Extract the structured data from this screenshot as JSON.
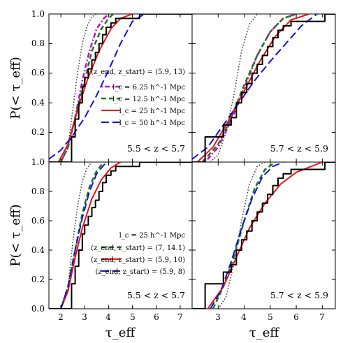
{
  "chart_data": [
    {
      "type": "line",
      "panel": "top-left",
      "panel_label": "5.5 < z < 5.7",
      "legend_position": "center-right",
      "legend_title": "(z_end, z_start) = (5.9, 13)",
      "ylim": [
        0,
        1.0
      ],
      "xlim": [
        1.5,
        7.5
      ],
      "series": [
        {
          "name": "",
          "style": "black-dotted",
          "color": "#333333",
          "x": [
            2.0,
            2.3,
            2.5,
            2.7,
            2.9,
            3.1,
            3.3,
            3.5
          ],
          "y": [
            0.0,
            0.1,
            0.35,
            0.6,
            0.8,
            0.92,
            0.98,
            1.0
          ]
        },
        {
          "name": "l_c = 6.25 h^-1 Mpc",
          "style": "magenta-dashdot",
          "color": "#cc00cc",
          "x": [
            2.0,
            2.3,
            2.6,
            2.9,
            3.2,
            3.5,
            3.8,
            4.0
          ],
          "y": [
            0.0,
            0.1,
            0.3,
            0.55,
            0.75,
            0.9,
            0.97,
            1.0
          ]
        },
        {
          "name": "l_c = 12.5 h^-1 Mpc",
          "style": "green-dashed",
          "color": "#1a7a1a",
          "x": [
            2.0,
            2.3,
            2.6,
            3.0,
            3.3,
            3.7,
            4.0,
            4.2
          ],
          "y": [
            0.0,
            0.1,
            0.3,
            0.55,
            0.75,
            0.9,
            0.97,
            1.0
          ]
        },
        {
          "name": "l_c = 25 h^-1 Mpc",
          "style": "red-solid",
          "color": "#ee1111",
          "x": [
            1.9,
            2.3,
            2.7,
            3.1,
            3.6,
            4.1,
            4.5,
            5.0
          ],
          "y": [
            0.0,
            0.12,
            0.35,
            0.55,
            0.75,
            0.9,
            0.97,
            1.0
          ]
        },
        {
          "name": "l_c = 50 h^-1 Mpc",
          "style": "blue-longdash",
          "color": "#1111dd",
          "x": [
            1.5,
            2.0,
            2.5,
            3.0,
            3.5,
            4.0,
            4.5,
            5.0,
            5.5
          ],
          "y": [
            0.02,
            0.08,
            0.18,
            0.3,
            0.45,
            0.62,
            0.8,
            0.95,
            1.0
          ]
        },
        {
          "name": "",
          "style": "black-step-observed",
          "color": "#000000",
          "x": [
            1.5,
            2.3,
            2.45,
            2.6,
            2.75,
            2.9,
            3.0,
            3.15,
            3.3,
            3.45,
            3.6,
            3.75,
            3.9,
            4.1,
            4.3,
            5.0,
            5.3,
            6.6,
            7.5
          ],
          "y": [
            0.0,
            0.0,
            0.17,
            0.29,
            0.4,
            0.51,
            0.57,
            0.63,
            0.69,
            0.74,
            0.8,
            0.86,
            0.91,
            0.94,
            0.97,
            0.97,
            1.0,
            1.0,
            1.0
          ]
        }
      ]
    },
    {
      "type": "line",
      "panel": "top-right",
      "panel_label": "5.7 < z < 5.9",
      "ylim": [
        0,
        1.0
      ],
      "xlim": [
        2.0,
        7.5
      ],
      "series": [
        {
          "name": "",
          "style": "black-dotted",
          "color": "#333333",
          "x": [
            2.7,
            3.0,
            3.3,
            3.6,
            3.9,
            4.2,
            4.5
          ],
          "y": [
            0.0,
            0.05,
            0.2,
            0.45,
            0.75,
            0.93,
            1.0
          ]
        },
        {
          "name": "l_c = 6.25 h^-1 Mpc",
          "style": "magenta-dashdot",
          "color": "#cc00cc",
          "x": [
            2.5,
            3.0,
            3.5,
            4.0,
            4.5,
            5.0,
            5.5,
            6.0
          ],
          "y": [
            0.0,
            0.1,
            0.28,
            0.5,
            0.72,
            0.88,
            0.97,
            1.0
          ]
        },
        {
          "name": "l_c = 12.5 h^-1 Mpc",
          "style": "green-dashed",
          "color": "#1a7a1a",
          "x": [
            2.4,
            3.0,
            3.5,
            4.0,
            4.5,
            5.0,
            5.5,
            6.0
          ],
          "y": [
            0.0,
            0.12,
            0.3,
            0.52,
            0.72,
            0.88,
            0.97,
            1.0
          ]
        },
        {
          "name": "l_c = 25 h^-1 Mpc",
          "style": "red-solid",
          "color": "#ee1111",
          "x": [
            2.2,
            2.8,
            3.4,
            4.0,
            4.6,
            5.2,
            5.8,
            6.5
          ],
          "y": [
            0.0,
            0.1,
            0.28,
            0.48,
            0.68,
            0.85,
            0.96,
            1.0
          ]
        },
        {
          "name": "l_c = 50 h^-1 Mpc",
          "style": "blue-longdash",
          "color": "#1111dd",
          "x": [
            2.0,
            2.6,
            3.2,
            3.8,
            4.4,
            5.0,
            5.6,
            6.2,
            6.8
          ],
          "y": [
            0.02,
            0.1,
            0.25,
            0.4,
            0.55,
            0.68,
            0.8,
            0.92,
            1.0
          ]
        },
        {
          "name": "",
          "style": "black-step-observed",
          "color": "#000000",
          "x": [
            2.0,
            2.5,
            2.5,
            3.0,
            3.2,
            3.5,
            3.7,
            3.9,
            4.1,
            4.3,
            4.5,
            4.7,
            4.9,
            5.1,
            5.3,
            5.5,
            5.8,
            6.5,
            7.1,
            7.5
          ],
          "y": [
            0.0,
            0.0,
            0.17,
            0.17,
            0.25,
            0.3,
            0.4,
            0.47,
            0.53,
            0.6,
            0.66,
            0.72,
            0.78,
            0.84,
            0.89,
            0.92,
            0.95,
            0.95,
            1.0,
            1.0
          ]
        }
      ]
    },
    {
      "type": "line",
      "panel": "bottom-left",
      "panel_label": "5.5 < z < 5.7",
      "legend_position": "lower-right",
      "legend_title": "l_c = 25 h^-1 Mpc",
      "ylim": [
        0,
        1.0
      ],
      "xlim": [
        1.5,
        7.5
      ],
      "series": [
        {
          "name": "",
          "style": "black-dotted",
          "color": "#333333",
          "x": [
            2.0,
            2.3,
            2.5,
            2.7,
            2.9,
            3.1,
            3.3
          ],
          "y": [
            0.0,
            0.15,
            0.45,
            0.7,
            0.87,
            0.96,
            1.0
          ]
        },
        {
          "name": "(z_end, z_start) = (7, 14.1)",
          "style": "green-dashed",
          "color": "#1a7a1a",
          "x": [
            2.0,
            2.3,
            2.6,
            2.9,
            3.2,
            3.5,
            3.8
          ],
          "y": [
            0.0,
            0.15,
            0.4,
            0.65,
            0.83,
            0.94,
            1.0
          ]
        },
        {
          "name": "(z_end, z_start) = (5.9, 10)",
          "style": "red-solid",
          "color": "#ee1111",
          "x": [
            2.0,
            2.3,
            2.6,
            2.9,
            3.3,
            3.7,
            4.1,
            4.5
          ],
          "y": [
            0.0,
            0.12,
            0.35,
            0.55,
            0.75,
            0.88,
            0.96,
            1.0
          ]
        },
        {
          "name": "(z_end, z_start) = (5.9, 8)",
          "style": "blue-longdash",
          "color": "#1111dd",
          "x": [
            2.0,
            2.3,
            2.6,
            2.9,
            3.2,
            3.5,
            3.8,
            4.0
          ],
          "y": [
            0.0,
            0.15,
            0.4,
            0.62,
            0.8,
            0.92,
            0.98,
            1.0
          ]
        },
        {
          "name": "",
          "style": "black-step-observed",
          "color": "#000000",
          "x": [
            1.5,
            2.3,
            2.45,
            2.6,
            2.75,
            2.9,
            3.0,
            3.15,
            3.3,
            3.45,
            3.6,
            3.75,
            3.9,
            4.1,
            4.3,
            5.0,
            5.3,
            6.6,
            7.5
          ],
          "y": [
            0.0,
            0.0,
            0.17,
            0.29,
            0.4,
            0.51,
            0.57,
            0.63,
            0.69,
            0.74,
            0.8,
            0.86,
            0.91,
            0.94,
            0.97,
            0.97,
            1.0,
            1.0,
            1.0
          ]
        }
      ]
    },
    {
      "type": "line",
      "panel": "bottom-right",
      "panel_label": "5.7 < z < 5.9",
      "ylim": [
        0,
        1.0
      ],
      "xlim": [
        2.0,
        7.5
      ],
      "series": [
        {
          "name": "",
          "style": "black-dotted",
          "color": "#333333",
          "x": [
            3.0,
            3.3,
            3.6,
            3.9,
            4.2,
            4.5,
            4.8
          ],
          "y": [
            0.0,
            0.08,
            0.3,
            0.6,
            0.85,
            0.97,
            1.0
          ]
        },
        {
          "name": "(z_end, z_start) = (7, 14.1)",
          "style": "green-dashed",
          "color": "#1a7a1a",
          "x": [
            2.8,
            3.2,
            3.6,
            4.0,
            4.4,
            4.8,
            5.2
          ],
          "y": [
            0.0,
            0.15,
            0.35,
            0.6,
            0.82,
            0.95,
            1.0
          ]
        },
        {
          "name": "(z_end, z_start) = (5.9, 10)",
          "style": "red-solid",
          "color": "#ee1111",
          "x": [
            2.6,
            3.2,
            3.7,
            4.2,
            4.8,
            5.4,
            6.0,
            7.0
          ],
          "y": [
            0.0,
            0.15,
            0.35,
            0.55,
            0.72,
            0.85,
            0.93,
            1.0
          ]
        },
        {
          "name": "(z_end, z_start) = (5.9, 8)",
          "style": "blue-longdash",
          "color": "#1111dd",
          "x": [
            2.7,
            3.1,
            3.5,
            3.9,
            4.3,
            4.7,
            5.1,
            5.5
          ],
          "y": [
            0.0,
            0.12,
            0.32,
            0.55,
            0.75,
            0.9,
            0.97,
            1.0
          ]
        },
        {
          "name": "",
          "style": "black-step-observed",
          "color": "#000000",
          "x": [
            2.0,
            2.5,
            2.5,
            3.0,
            3.2,
            3.5,
            3.7,
            3.9,
            4.1,
            4.3,
            4.5,
            4.7,
            4.9,
            5.1,
            5.3,
            5.5,
            5.8,
            6.5,
            7.1,
            7.5
          ],
          "y": [
            0.0,
            0.0,
            0.17,
            0.17,
            0.25,
            0.3,
            0.4,
            0.47,
            0.53,
            0.6,
            0.66,
            0.72,
            0.78,
            0.84,
            0.89,
            0.92,
            0.95,
            0.95,
            1.0,
            1.0
          ]
        }
      ]
    }
  ],
  "axes": {
    "ylabel": "P(< τ_eff)",
    "xlabel": "τ_eff",
    "left_xticks": [
      "2",
      "3",
      "4",
      "5",
      "6",
      "7"
    ],
    "right_xticks": [
      "3",
      "4",
      "5",
      "6",
      "7"
    ],
    "yticks": [
      "0.0",
      "0.2",
      "0.4",
      "0.6",
      "0.8",
      "1.0"
    ]
  }
}
